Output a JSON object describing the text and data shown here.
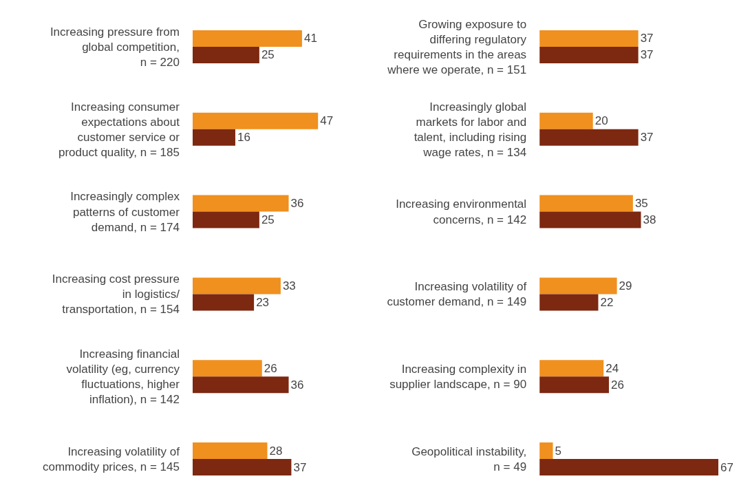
{
  "chart_data": [
    {
      "type": "bar",
      "orientation": "horizontal",
      "data_labels": true,
      "tick_labels": "y",
      "categories": [
        "Increasing pressure from global competition, n = 220",
        "Increasing consumer expectations about customer service or product quality, n = 185",
        "Increasingly complex patterns of customer demand, n = 174",
        "Increasing cost pressure in logistics/ transportation, n = 154",
        "Increasing financial volatility (eg, currency fluctuations, higher inflation), n = 142",
        "Increasing volatility of commodity prices, n = 145"
      ],
      "series": [
        {
          "color": "#f0901e",
          "values": [
            41,
            47,
            36,
            33,
            26,
            28
          ]
        },
        {
          "color": "#7d2811",
          "values": [
            25,
            16,
            25,
            23,
            36,
            37
          ]
        }
      ]
    },
    {
      "type": "bar",
      "orientation": "horizontal",
      "data_labels": true,
      "tick_labels": "y",
      "categories": [
        "Growing exposure to differing regulatory requirements in the areas where we operate, n = 151",
        "Increasingly global markets for labor and talent, including rising wage rates, n = 134",
        "Increasing environmental concerns, n = 142",
        "Increasing volatility of customer demand, n = 149",
        "Increasing complexity in supplier landscape, n = 90",
        "Geopolitical instability, n = 49"
      ],
      "series": [
        {
          "color": "#f0901e",
          "values": [
            37,
            20,
            35,
            29,
            24,
            5
          ]
        },
        {
          "color": "#7d2811",
          "values": [
            37,
            37,
            38,
            22,
            26,
            67
          ]
        }
      ]
    }
  ]
}
